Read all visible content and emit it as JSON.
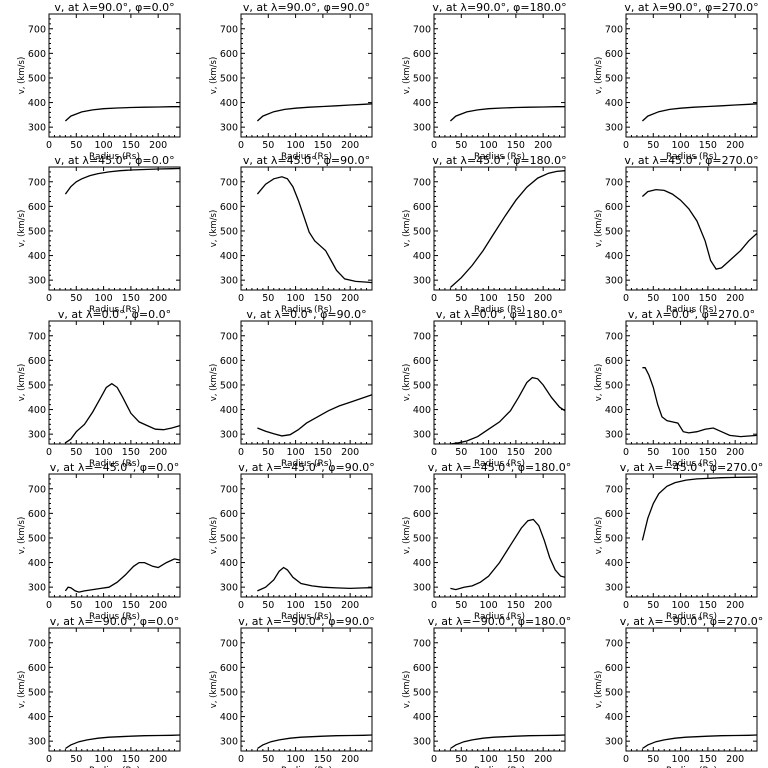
{
  "chart_data": [
    {
      "type": "line",
      "title": "v, at λ=90.0°, φ=0.0°",
      "xlabel": "Radius (Rs)",
      "ylabel": "v, (km/s)",
      "xlim": [
        0,
        240
      ],
      "ylim": [
        260,
        760
      ],
      "x": [
        30,
        40,
        60,
        80,
        100,
        125,
        150,
        175,
        200,
        225,
        240
      ],
      "y": [
        325,
        345,
        362,
        370,
        375,
        378,
        380,
        381,
        382,
        383,
        383
      ]
    },
    {
      "type": "line",
      "title": "v, at λ=90.0°, φ=90.0°",
      "xlabel": "Radius (Rs)",
      "ylabel": "v, (km/s)",
      "xlim": [
        0,
        240
      ],
      "ylim": [
        260,
        760
      ],
      "x": [
        30,
        40,
        60,
        80,
        100,
        125,
        150,
        175,
        200,
        225,
        240
      ],
      "y": [
        325,
        345,
        363,
        372,
        377,
        381,
        384,
        387,
        390,
        393,
        395
      ]
    },
    {
      "type": "line",
      "title": "v, at λ=90.0°, φ=180.0°",
      "xlabel": "Radius (Rs)",
      "ylabel": "v, (km/s)",
      "xlim": [
        0,
        240
      ],
      "ylim": [
        260,
        760
      ],
      "x": [
        30,
        40,
        60,
        80,
        100,
        125,
        150,
        175,
        200,
        225,
        240
      ],
      "y": [
        325,
        345,
        362,
        370,
        375,
        378,
        380,
        381,
        382,
        383,
        383
      ]
    },
    {
      "type": "line",
      "title": "v, at λ=90.0°, φ=270.0°",
      "xlabel": "Radius (Rs)",
      "ylabel": "v, (km/s)",
      "xlim": [
        0,
        240
      ],
      "ylim": [
        260,
        760
      ],
      "x": [
        30,
        40,
        60,
        80,
        100,
        125,
        150,
        175,
        200,
        225,
        240
      ],
      "y": [
        325,
        345,
        363,
        372,
        377,
        381,
        384,
        387,
        390,
        393,
        395
      ]
    },
    {
      "type": "line",
      "title": "v, at λ=45.0°, φ=0.0°",
      "xlabel": "Radius (Rs)",
      "ylabel": "v, (km/s)",
      "xlim": [
        0,
        240
      ],
      "ylim": [
        260,
        760
      ],
      "x": [
        30,
        40,
        50,
        60,
        75,
        90,
        110,
        130,
        150,
        175,
        200,
        225,
        240
      ],
      "y": [
        650,
        680,
        700,
        712,
        725,
        733,
        740,
        745,
        748,
        750,
        752,
        753,
        754
      ]
    },
    {
      "type": "line",
      "title": "v, at λ=45.0°, φ=90.0°",
      "xlabel": "Radius (Rs)",
      "ylabel": "v, (km/s)",
      "xlim": [
        0,
        240
      ],
      "ylim": [
        260,
        760
      ],
      "x": [
        30,
        45,
        60,
        75,
        85,
        95,
        105,
        115,
        125,
        135,
        145,
        155,
        165,
        175,
        190,
        210,
        230,
        240
      ],
      "y": [
        650,
        690,
        712,
        720,
        712,
        680,
        625,
        560,
        495,
        460,
        440,
        420,
        380,
        340,
        305,
        295,
        292,
        290
      ]
    },
    {
      "type": "line",
      "title": "v, at λ=45.0°, φ=180.0°",
      "xlabel": "Radius (Rs)",
      "ylabel": "v, (km/s)",
      "xlim": [
        0,
        240
      ],
      "ylim": [
        260,
        760
      ],
      "x": [
        30,
        50,
        70,
        90,
        110,
        130,
        150,
        170,
        190,
        210,
        225,
        240
      ],
      "y": [
        270,
        310,
        360,
        420,
        490,
        560,
        625,
        678,
        715,
        735,
        742,
        745
      ]
    },
    {
      "type": "line",
      "title": "v, at λ=45.0°, φ=270.0°",
      "xlabel": "Radius (Rs)",
      "ylabel": "v, (km/s)",
      "xlim": [
        0,
        240
      ],
      "ylim": [
        260,
        760
      ],
      "x": [
        30,
        40,
        55,
        70,
        85,
        100,
        115,
        130,
        145,
        155,
        165,
        175,
        190,
        210,
        225,
        240
      ],
      "y": [
        640,
        660,
        668,
        665,
        650,
        625,
        590,
        540,
        460,
        380,
        345,
        350,
        380,
        420,
        460,
        490
      ]
    },
    {
      "type": "line",
      "title": "v, at λ=0.0°, φ=0.0°",
      "xlabel": "Radius (Rs)",
      "ylabel": "v, (km/s)",
      "xlim": [
        0,
        240
      ],
      "ylim": [
        260,
        760
      ],
      "x": [
        30,
        40,
        50,
        65,
        80,
        95,
        105,
        115,
        125,
        135,
        150,
        165,
        180,
        195,
        210,
        225,
        240
      ],
      "y": [
        265,
        280,
        310,
        340,
        390,
        450,
        490,
        505,
        490,
        450,
        385,
        350,
        335,
        320,
        318,
        325,
        335
      ]
    },
    {
      "type": "line",
      "title": "v, at λ=0.0°, φ=90.0°",
      "xlabel": "Radius (Rs)",
      "ylabel": "v, (km/s)",
      "xlim": [
        0,
        240
      ],
      "ylim": [
        260,
        760
      ],
      "x": [
        30,
        45,
        60,
        75,
        90,
        105,
        120,
        140,
        160,
        180,
        200,
        220,
        240
      ],
      "y": [
        325,
        312,
        302,
        293,
        298,
        318,
        345,
        370,
        395,
        415,
        430,
        445,
        460
      ]
    },
    {
      "type": "line",
      "title": "v, at λ=0.0°, φ=180.0°",
      "xlabel": "Radius (Rs)",
      "ylabel": "v, (km/s)",
      "xlim": [
        0,
        240
      ],
      "ylim": [
        260,
        760
      ],
      "x": [
        30,
        45,
        60,
        80,
        100,
        120,
        140,
        155,
        170,
        180,
        190,
        200,
        215,
        230,
        240
      ],
      "y": [
        260,
        265,
        272,
        290,
        320,
        350,
        395,
        450,
        510,
        530,
        525,
        500,
        450,
        410,
        395
      ]
    },
    {
      "type": "line",
      "title": "v, at λ=0.0°, φ=270.0°",
      "xlabel": "Radius (Rs)",
      "ylabel": "v, (km/s)",
      "xlim": [
        0,
        240
      ],
      "ylim": [
        260,
        760
      ],
      "x": [
        30,
        35,
        42,
        50,
        58,
        66,
        75,
        85,
        95,
        105,
        115,
        130,
        145,
        160,
        175,
        190,
        210,
        240
      ],
      "y": [
        570,
        570,
        540,
        490,
        420,
        370,
        355,
        350,
        345,
        310,
        305,
        310,
        320,
        325,
        310,
        295,
        290,
        295
      ]
    },
    {
      "type": "line",
      "title": "v, at λ=−45.0°, φ=0.0°",
      "xlabel": "Radius (Rs)",
      "ylabel": "v, (km/s)",
      "xlim": [
        0,
        240
      ],
      "ylim": [
        260,
        760
      ],
      "x": [
        30,
        35,
        40,
        48,
        55,
        65,
        80,
        95,
        110,
        125,
        140,
        155,
        165,
        175,
        190,
        200,
        215,
        230,
        240
      ],
      "y": [
        285,
        300,
        298,
        285,
        280,
        285,
        290,
        295,
        300,
        320,
        350,
        385,
        400,
        400,
        385,
        380,
        400,
        415,
        410
      ]
    },
    {
      "type": "line",
      "title": "v, at λ=−45.0°, φ=90.0°",
      "xlabel": "Radius (Rs)",
      "ylabel": "v, (km/s)",
      "xlim": [
        0,
        240
      ],
      "ylim": [
        260,
        760
      ],
      "x": [
        30,
        45,
        60,
        70,
        78,
        85,
        95,
        110,
        130,
        150,
        175,
        200,
        225,
        240
      ],
      "y": [
        285,
        300,
        330,
        365,
        380,
        370,
        340,
        315,
        305,
        300,
        297,
        295,
        297,
        298
      ]
    },
    {
      "type": "line",
      "title": "v, at λ=−45.0°, φ=180.0°",
      "xlabel": "Radius (Rs)",
      "ylabel": "v, (km/s)",
      "xlim": [
        0,
        240
      ],
      "ylim": [
        260,
        760
      ],
      "x": [
        30,
        40,
        55,
        70,
        85,
        100,
        120,
        140,
        160,
        172,
        182,
        192,
        202,
        212,
        222,
        232,
        240
      ],
      "y": [
        295,
        290,
        300,
        305,
        320,
        345,
        400,
        470,
        540,
        570,
        575,
        550,
        490,
        420,
        370,
        345,
        340
      ]
    },
    {
      "type": "line",
      "title": "v, at λ=−45.0°, φ=270.0°",
      "xlabel": "Radius (Rs)",
      "ylabel": "v, (km/s)",
      "xlim": [
        0,
        240
      ],
      "ylim": [
        260,
        760
      ],
      "x": [
        30,
        40,
        50,
        60,
        75,
        90,
        110,
        130,
        150,
        175,
        200,
        225,
        240
      ],
      "y": [
        490,
        580,
        640,
        680,
        710,
        725,
        735,
        740,
        742,
        745,
        746,
        747,
        748
      ]
    },
    {
      "type": "line",
      "title": "v, at λ=−90.0°, φ=0.0°",
      "xlabel": "Radius (Rs)",
      "ylabel": "v, (km/s)",
      "xlim": [
        0,
        240
      ],
      "ylim": [
        260,
        760
      ],
      "x": [
        30,
        40,
        55,
        70,
        90,
        110,
        130,
        150,
        175,
        200,
        225,
        240
      ],
      "y": [
        270,
        285,
        298,
        305,
        312,
        316,
        318,
        320,
        322,
        323,
        324,
        325
      ]
    },
    {
      "type": "line",
      "title": "v, at λ=−90.0°, φ=90.0°",
      "xlabel": "Radius (Rs)",
      "ylabel": "v, (km/s)",
      "xlim": [
        0,
        240
      ],
      "ylim": [
        260,
        760
      ],
      "x": [
        30,
        40,
        55,
        70,
        90,
        110,
        130,
        150,
        175,
        200,
        225,
        240
      ],
      "y": [
        270,
        285,
        298,
        305,
        312,
        316,
        318,
        320,
        322,
        323,
        324,
        325
      ]
    },
    {
      "type": "line",
      "title": "v, at λ=−90.0°, φ=180.0°",
      "xlabel": "Radius (Rs)",
      "ylabel": "v, (km/s)",
      "xlim": [
        0,
        240
      ],
      "ylim": [
        260,
        760
      ],
      "x": [
        30,
        40,
        55,
        70,
        90,
        110,
        130,
        150,
        175,
        200,
        225,
        240
      ],
      "y": [
        270,
        285,
        298,
        305,
        312,
        316,
        318,
        320,
        322,
        323,
        324,
        325
      ]
    },
    {
      "type": "line",
      "title": "v, at λ=−90.0°, φ=270.0°",
      "xlabel": "Radius (Rs)",
      "ylabel": "v, (km/s)",
      "xlim": [
        0,
        240
      ],
      "ylim": [
        260,
        760
      ],
      "x": [
        30,
        40,
        55,
        70,
        90,
        110,
        130,
        150,
        175,
        200,
        225,
        240
      ],
      "y": [
        270,
        285,
        298,
        305,
        312,
        316,
        318,
        320,
        322,
        323,
        324,
        325
      ]
    }
  ],
  "xticks": [
    "0",
    "50",
    "100",
    "150",
    "200"
  ],
  "yticks": [
    "300",
    "400",
    "500",
    "600",
    "700"
  ],
  "line_color": "#000000"
}
